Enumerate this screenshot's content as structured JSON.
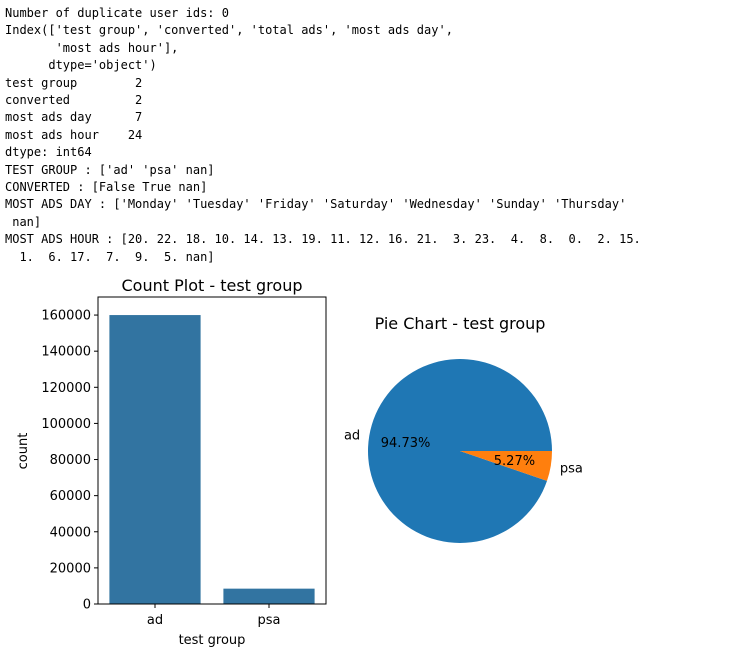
{
  "output": {
    "lines": [
      "Number of duplicate user ids: 0",
      "Index(['test group', 'converted', 'total ads', 'most ads day',",
      "       'most ads hour'],",
      "      dtype='object')",
      "test group        2",
      "converted         2",
      "most ads day      7",
      "most ads hour    24",
      "dtype: int64",
      "TEST GROUP : ['ad' 'psa' nan]",
      "CONVERTED : [False True nan]",
      "MOST ADS DAY : ['Monday' 'Tuesday' 'Friday' 'Saturday' 'Wednesday' 'Sunday' 'Thursday'",
      " nan]",
      "MOST ADS HOUR : [20. 22. 18. 10. 14. 13. 19. 11. 12. 16. 21.  3. 23.  4.  8.  0.  2. 15.",
      "  1.  6. 17.  7.  9.  5. nan]"
    ]
  },
  "colors": {
    "ad": "#1f77b4",
    "psa": "#ff7f0e",
    "bar": "#3274a1"
  },
  "chart_data": [
    {
      "type": "bar",
      "title": "Count Plot - test group",
      "xlabel": "test group",
      "ylabel": "count",
      "categories": [
        "ad",
        "psa"
      ],
      "values": [
        160000,
        8500
      ],
      "ylim": [
        0,
        170000
      ],
      "yticks": [
        0,
        20000,
        40000,
        60000,
        80000,
        100000,
        120000,
        140000,
        160000
      ],
      "grid": false
    },
    {
      "type": "pie",
      "title": "Pie Chart - test group",
      "labels": [
        "ad",
        "psa"
      ],
      "values": [
        94.73,
        5.27
      ],
      "autopct": [
        "94.73%",
        "5.27%"
      ]
    }
  ]
}
